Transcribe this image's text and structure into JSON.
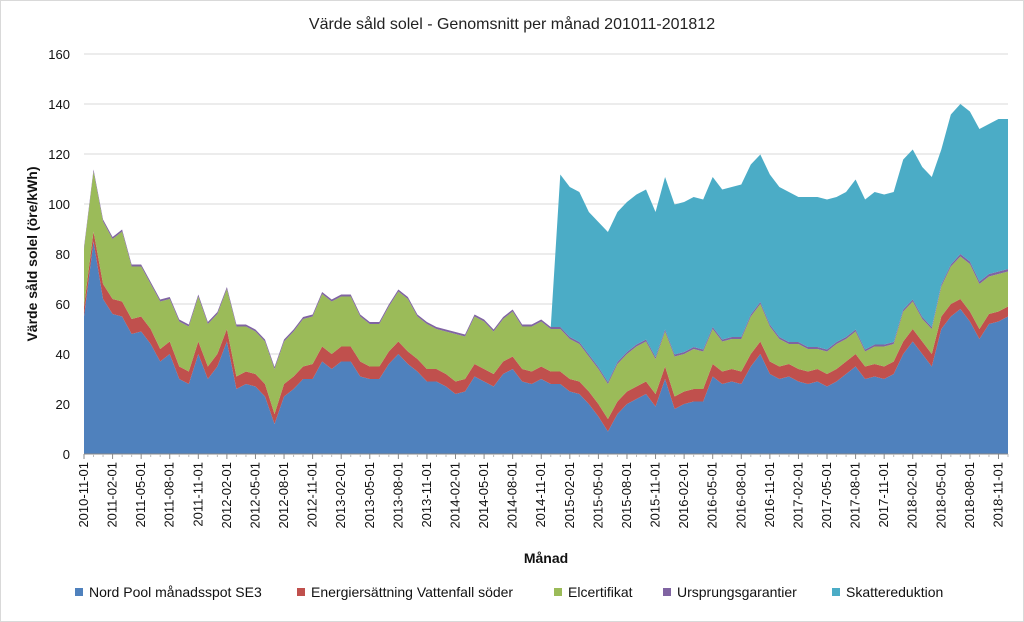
{
  "chart_data": {
    "type": "area",
    "stacked": true,
    "title": "Värde såld solel - Genomsnitt per månad 201011-201812",
    "xlabel": "Månad",
    "ylabel": "Värde såld solel (öre/kWh)",
    "ylim": [
      0,
      160
    ],
    "yticks": [
      0,
      20,
      40,
      60,
      80,
      100,
      120,
      140,
      160
    ],
    "grid": "horizontal",
    "legend": "bottom",
    "x_tick_labels": [
      "2010-11-01",
      "2011-02-01",
      "2011-05-01",
      "2011-08-01",
      "2011-11-01",
      "2012-02-01",
      "2012-05-01",
      "2012-08-01",
      "2012-11-01",
      "2013-02-01",
      "2013-05-01",
      "2013-08-01",
      "2013-11-01",
      "2014-02-01",
      "2014-05-01",
      "2014-08-01",
      "2014-11-01",
      "2015-02-01",
      "2015-05-01",
      "2015-08-01",
      "2015-11-01",
      "2016-02-01",
      "2016-05-01",
      "2016-08-01",
      "2016-11-01",
      "2017-02-01",
      "2017-05-01",
      "2017-08-01",
      "2017-11-01",
      "2018-02-01",
      "2018-05-01",
      "2018-08-01",
      "2018-11-01"
    ],
    "x": [
      "2010-11",
      "2010-12",
      "2011-01",
      "2011-02",
      "2011-03",
      "2011-04",
      "2011-05",
      "2011-06",
      "2011-07",
      "2011-08",
      "2011-09",
      "2011-10",
      "2011-11",
      "2011-12",
      "2012-01",
      "2012-02",
      "2012-03",
      "2012-04",
      "2012-05",
      "2012-06",
      "2012-07",
      "2012-08",
      "2012-09",
      "2012-10",
      "2012-11",
      "2012-12",
      "2013-01",
      "2013-02",
      "2013-03",
      "2013-04",
      "2013-05",
      "2013-06",
      "2013-07",
      "2013-08",
      "2013-09",
      "2013-10",
      "2013-11",
      "2013-12",
      "2014-01",
      "2014-02",
      "2014-03",
      "2014-04",
      "2014-05",
      "2014-06",
      "2014-07",
      "2014-08",
      "2014-09",
      "2014-10",
      "2014-11",
      "2014-12",
      "2015-01",
      "2015-02",
      "2015-03",
      "2015-04",
      "2015-05",
      "2015-06",
      "2015-07",
      "2015-08",
      "2015-09",
      "2015-10",
      "2015-11",
      "2015-12",
      "2016-01",
      "2016-02",
      "2016-03",
      "2016-04",
      "2016-05",
      "2016-06",
      "2016-07",
      "2016-08",
      "2016-09",
      "2016-10",
      "2016-11",
      "2016-12",
      "2017-01",
      "2017-02",
      "2017-03",
      "2017-04",
      "2017-05",
      "2017-06",
      "2017-07",
      "2017-08",
      "2017-09",
      "2017-10",
      "2017-11",
      "2017-12",
      "2018-01",
      "2018-02",
      "2018-03",
      "2018-04",
      "2018-05",
      "2018-06",
      "2018-07",
      "2018-08",
      "2018-09",
      "2018-10",
      "2018-11",
      "2018-12"
    ],
    "series": [
      {
        "name": "Nord Pool månadsspot SE3",
        "color": "#4F81BD",
        "values": [
          55,
          85,
          62,
          56,
          55,
          48,
          49,
          44,
          37,
          40,
          30,
          28,
          40,
          30,
          35,
          45,
          26,
          28,
          27,
          23,
          12,
          23,
          26,
          30,
          30,
          37,
          34,
          37,
          37,
          31,
          30,
          30,
          36,
          40,
          36,
          33,
          29,
          29,
          27,
          24,
          25,
          31,
          29,
          27,
          32,
          34,
          29,
          28,
          30,
          28,
          28,
          25,
          24,
          20,
          15,
          9,
          16,
          20,
          22,
          24,
          19,
          30,
          18,
          20,
          21,
          21,
          31,
          28,
          29,
          28,
          35,
          40,
          32,
          30,
          31,
          29,
          28,
          29,
          27,
          29,
          32,
          35,
          30,
          31,
          30,
          32,
          40,
          45,
          40,
          35,
          50,
          55,
          58,
          53,
          46,
          52,
          53,
          55
        ]
      },
      {
        "name": "Energiersättning Vattenfall söder",
        "color": "#C0504D",
        "values": [
          4,
          4,
          6,
          6,
          6,
          6,
          6,
          6,
          5,
          5,
          5,
          5,
          5,
          5,
          5,
          5,
          5,
          5,
          5,
          5,
          4,
          5,
          5,
          5,
          6,
          6,
          6,
          6,
          6,
          6,
          5,
          5,
          5,
          5,
          5,
          5,
          5,
          5,
          5,
          5,
          5,
          5,
          5,
          5,
          5,
          5,
          5,
          5,
          5,
          5,
          5,
          5,
          5,
          5,
          5,
          5,
          5,
          5,
          5,
          5,
          5,
          5,
          5,
          5,
          5,
          5,
          5,
          5,
          5,
          5,
          5,
          5,
          5,
          5,
          5,
          5,
          5,
          5,
          5,
          5,
          5,
          5,
          5,
          5,
          5,
          5,
          5,
          5,
          5,
          5,
          5,
          5,
          4,
          4,
          4,
          4,
          4,
          4
        ]
      },
      {
        "name": "Elcertifikat",
        "color": "#9BBB59",
        "values": [
          23,
          24,
          25,
          24,
          28,
          21,
          20,
          18,
          19,
          17,
          18,
          18,
          18,
          17,
          16,
          16,
          20,
          18,
          17,
          17,
          18,
          17,
          18,
          19,
          19,
          21,
          21,
          20,
          20,
          18,
          17,
          17,
          18,
          20,
          21,
          17,
          18,
          16,
          17,
          19,
          17,
          19,
          19,
          17,
          17,
          18,
          17,
          18,
          18,
          17,
          17,
          16,
          15,
          14,
          14,
          14,
          15,
          15,
          16,
          16,
          14,
          14,
          16,
          15,
          16,
          15,
          14,
          12,
          12,
          13,
          15,
          15,
          14,
          11,
          8,
          10,
          9,
          8,
          9,
          10,
          9,
          9,
          6,
          7,
          8,
          7,
          12,
          11,
          9,
          10,
          12,
          15,
          17,
          19,
          18,
          15,
          15,
          14
        ]
      },
      {
        "name": "Ursprungsgarantier",
        "color": "#8064A2",
        "values": [
          0.8,
          0.8,
          0.8,
          0.8,
          0.8,
          0.8,
          0.8,
          0.8,
          0.8,
          0.8,
          0.8,
          0.8,
          0.8,
          0.8,
          0.8,
          0.8,
          0.8,
          0.8,
          0.8,
          0.8,
          0.8,
          0.8,
          0.8,
          0.8,
          0.8,
          0.8,
          0.8,
          0.8,
          0.8,
          0.8,
          0.8,
          0.8,
          0.8,
          0.8,
          0.8,
          0.8,
          0.8,
          0.8,
          0.8,
          0.8,
          0.8,
          0.8,
          0.8,
          0.8,
          0.8,
          0.8,
          0.8,
          0.8,
          0.8,
          0.8,
          0.8,
          0.8,
          0.8,
          0.8,
          0.8,
          0.8,
          0.8,
          0.8,
          0.8,
          0.8,
          0.8,
          0.8,
          0.8,
          0.8,
          0.8,
          0.8,
          0.8,
          0.8,
          0.8,
          0.8,
          0.8,
          0.8,
          0.8,
          0.8,
          0.8,
          0.8,
          0.8,
          0.8,
          0.8,
          0.8,
          0.8,
          0.8,
          0.8,
          0.8,
          0.8,
          0.8,
          0.8,
          0.8,
          0.8,
          0.8,
          0.8,
          0.8,
          1,
          1,
          1,
          1,
          1,
          1
        ]
      },
      {
        "name": "Skattereduktion",
        "color": "#4BACC6",
        "values": [
          0,
          0,
          0,
          0,
          0,
          0,
          0,
          0,
          0,
          0,
          0,
          0,
          0,
          0,
          0,
          0,
          0,
          0,
          0,
          0,
          0,
          0,
          0,
          0,
          0,
          0,
          0,
          0,
          0,
          0,
          0,
          0,
          0,
          0,
          0,
          0,
          0,
          0,
          0,
          0,
          0,
          0,
          0,
          0,
          0,
          0,
          0,
          0,
          0,
          0,
          61,
          60,
          60,
          57,
          58,
          60,
          60,
          60,
          60,
          60,
          58,
          61,
          60,
          60,
          60,
          60,
          60,
          60,
          60,
          61,
          60,
          59,
          60,
          60,
          60,
          58,
          60,
          60,
          60,
          58,
          58,
          60,
          60,
          61,
          60,
          60,
          60,
          60,
          60,
          60,
          54,
          60,
          60,
          60,
          61,
          60,
          61,
          60
        ]
      }
    ]
  }
}
